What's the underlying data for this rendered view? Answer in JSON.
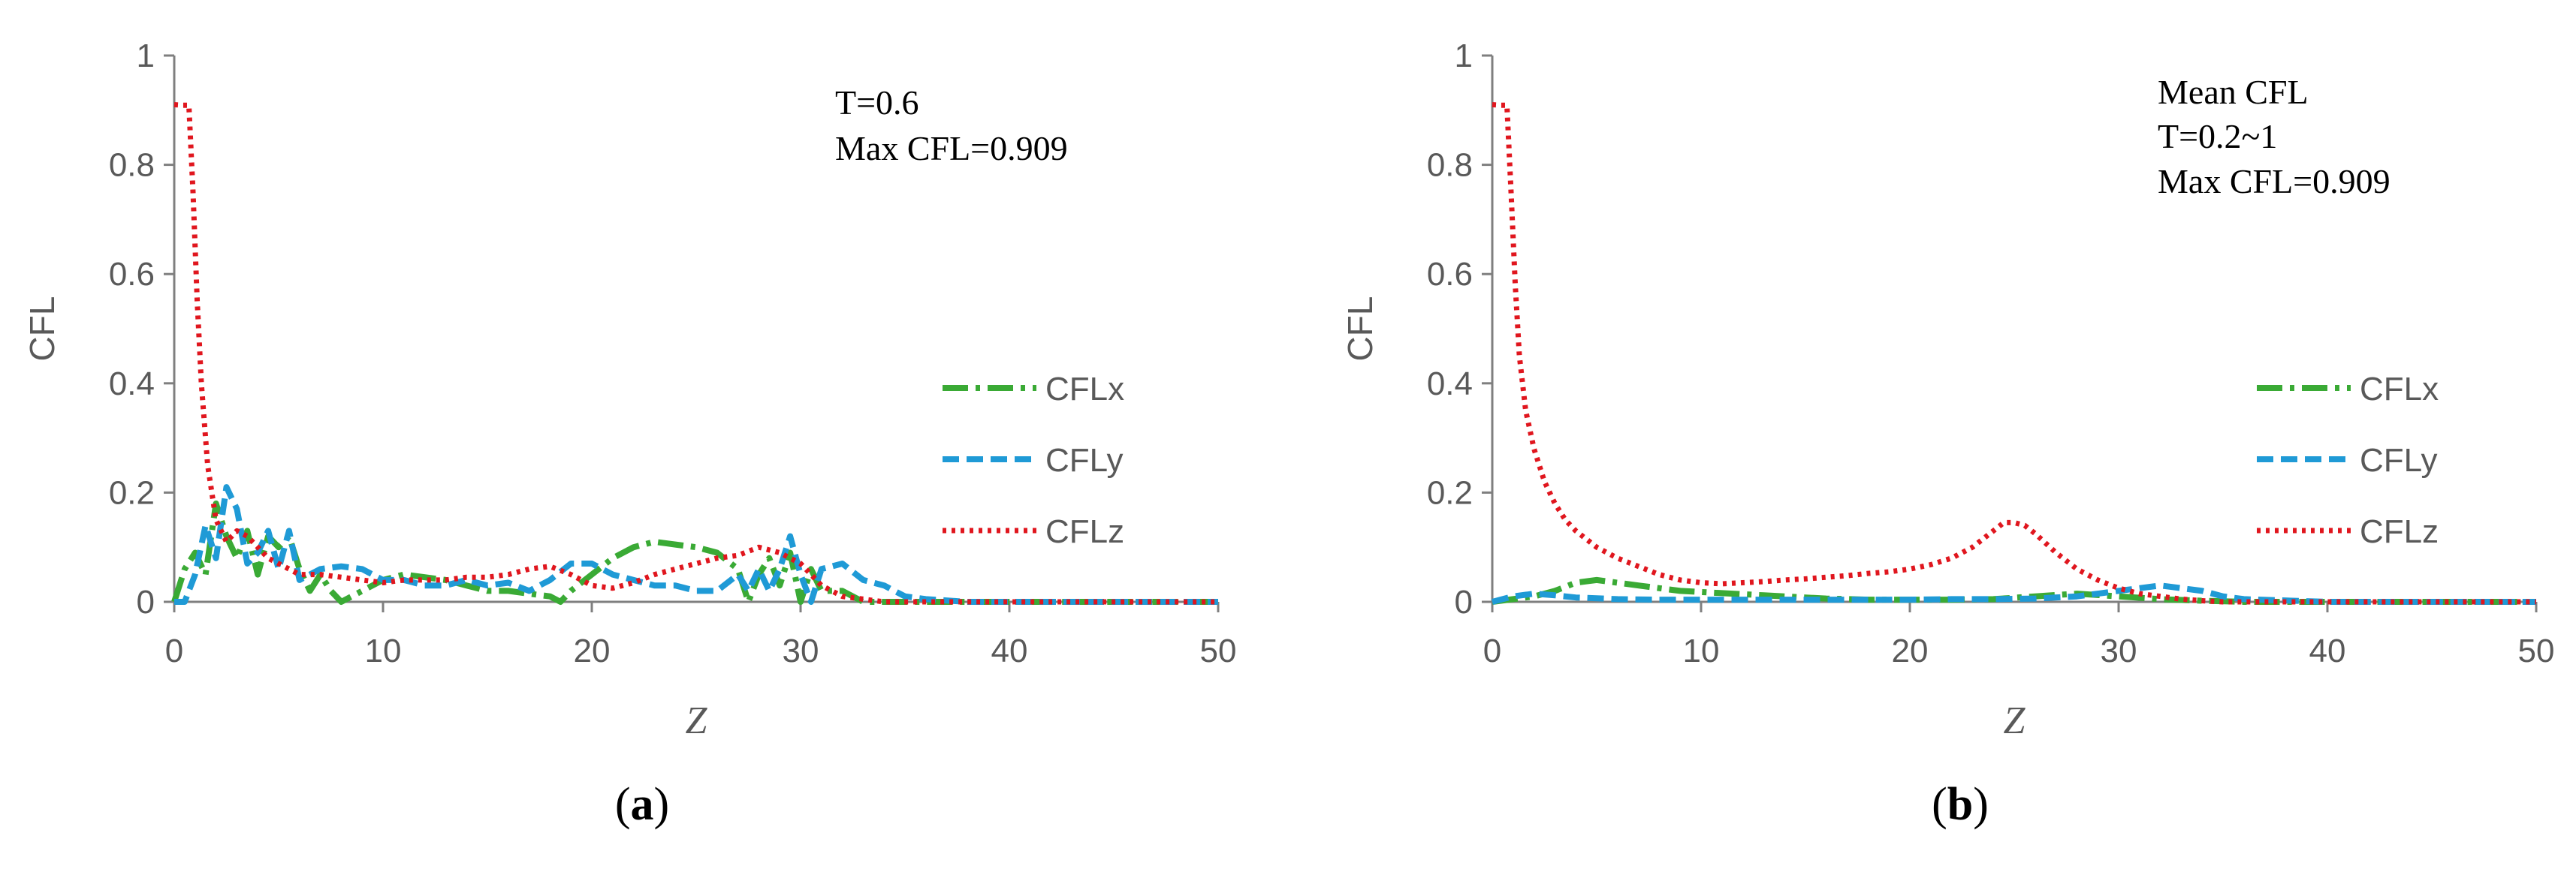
{
  "chart_data": [
    {
      "type": "line",
      "panel_label": {
        "open": "(",
        "letter": "a",
        "close": ")"
      },
      "xlabel": "Z",
      "ylabel": "CFL",
      "xlim": [
        0,
        50
      ],
      "ylim": [
        0,
        1
      ],
      "xticks": [
        "0",
        "10",
        "20",
        "30",
        "40",
        "50"
      ],
      "yticks": [
        "0",
        "0.2",
        "0.4",
        "0.6",
        "0.8",
        "1"
      ],
      "annotations": [
        "T=0.6",
        "Max CFL=0.909"
      ],
      "legend_position": "right",
      "series": [
        {
          "name": "CFLx",
          "color": "#3aaa35",
          "style": "dash-dot",
          "x": [
            0,
            0.5,
            1,
            1.5,
            2,
            2.5,
            3,
            3.5,
            4,
            4.5,
            5,
            5.5,
            6,
            6.5,
            7,
            7.5,
            8,
            9,
            10,
            11,
            12,
            13,
            14,
            15,
            16,
            17,
            18,
            18.5,
            19,
            20,
            21,
            22,
            23,
            24,
            25,
            26,
            27,
            27.5,
            28,
            28.5,
            29,
            29.5,
            30,
            30.5,
            31,
            32,
            33,
            34,
            35,
            40,
            45,
            50
          ],
          "y": [
            0,
            0.06,
            0.09,
            0.05,
            0.18,
            0.12,
            0.08,
            0.13,
            0.05,
            0.12,
            0.1,
            0.12,
            0.06,
            0.02,
            0.05,
            0.02,
            0.0,
            0.02,
            0.04,
            0.05,
            0.045,
            0.04,
            0.03,
            0.02,
            0.02,
            0.015,
            0.01,
            0.0,
            0.02,
            0.05,
            0.08,
            0.1,
            0.11,
            0.105,
            0.1,
            0.09,
            0.06,
            0.0,
            0.05,
            0.08,
            0.03,
            0.09,
            0.0,
            0.06,
            0.02,
            0.02,
            0.0,
            0.0,
            0.0,
            0.0,
            0.0,
            0.0
          ]
        },
        {
          "name": "CFLy",
          "color": "#1f9ad6",
          "style": "dash",
          "x": [
            0,
            0.5,
            1,
            1.5,
            2,
            2.5,
            3,
            3.5,
            4,
            4.5,
            5,
            5.5,
            6,
            6.5,
            7,
            8,
            9,
            10,
            11,
            12,
            13,
            14,
            15,
            16,
            17,
            18,
            19,
            20,
            21,
            22,
            23,
            24,
            25,
            26,
            27,
            27.5,
            28,
            28.5,
            29,
            29.5,
            30,
            30.5,
            31,
            32,
            33,
            34,
            35,
            36,
            38,
            40,
            45,
            50
          ],
          "y": [
            0,
            0.0,
            0.05,
            0.14,
            0.08,
            0.21,
            0.17,
            0.07,
            0.09,
            0.13,
            0.06,
            0.13,
            0.04,
            0.05,
            0.06,
            0.065,
            0.06,
            0.04,
            0.04,
            0.03,
            0.03,
            0.04,
            0.03,
            0.035,
            0.02,
            0.04,
            0.07,
            0.07,
            0.05,
            0.04,
            0.03,
            0.03,
            0.02,
            0.02,
            0.05,
            0.02,
            0.06,
            0.02,
            0.06,
            0.12,
            0.05,
            0.0,
            0.06,
            0.07,
            0.04,
            0.03,
            0.01,
            0.005,
            0.0,
            0.0,
            0.0,
            0.0
          ]
        },
        {
          "name": "CFLz",
          "color": "#e0161e",
          "style": "dot",
          "x": [
            0,
            0.4,
            0.7,
            0.9,
            1.1,
            1.3,
            1.6,
            2,
            2.5,
            3,
            3.5,
            4,
            4.5,
            5,
            6,
            7,
            8,
            9,
            10,
            11,
            12,
            13,
            14,
            15,
            16,
            17,
            18,
            19,
            20,
            21,
            22,
            23,
            24,
            25,
            26,
            27,
            28,
            29,
            30,
            31,
            32,
            33,
            34,
            35,
            40,
            45,
            50
          ],
          "y": [
            0.91,
            0.909,
            0.909,
            0.75,
            0.55,
            0.4,
            0.25,
            0.15,
            0.11,
            0.13,
            0.12,
            0.1,
            0.08,
            0.07,
            0.05,
            0.05,
            0.045,
            0.04,
            0.035,
            0.04,
            0.04,
            0.04,
            0.045,
            0.045,
            0.05,
            0.06,
            0.065,
            0.05,
            0.03,
            0.025,
            0.035,
            0.05,
            0.06,
            0.07,
            0.08,
            0.085,
            0.1,
            0.09,
            0.07,
            0.03,
            0.01,
            0.005,
            0.0,
            0.0,
            0.0,
            0.0,
            0.0
          ]
        }
      ]
    },
    {
      "type": "line",
      "panel_label": {
        "open": "(",
        "letter": "b",
        "close": ")"
      },
      "xlabel": "Z",
      "ylabel": "CFL",
      "xlim": [
        0,
        50
      ],
      "ylim": [
        0,
        1
      ],
      "xticks": [
        "0",
        "10",
        "20",
        "30",
        "40",
        "50"
      ],
      "yticks": [
        "0",
        "0.2",
        "0.4",
        "0.6",
        "0.8",
        "1"
      ],
      "annotations": [
        "Mean CFL",
        "T=0.2~1",
        "Max CFL=0.909"
      ],
      "legend_position": "right",
      "series": [
        {
          "name": "CFLx",
          "color": "#3aaa35",
          "style": "dash-dot",
          "x": [
            0,
            1,
            2,
            3,
            4,
            5,
            6,
            7,
            8,
            9,
            10,
            11,
            12,
            13,
            14,
            15,
            16,
            18,
            20,
            22,
            24,
            26,
            28,
            30,
            32,
            34,
            36,
            40,
            45,
            50
          ],
          "y": [
            0,
            0.005,
            0.01,
            0.02,
            0.035,
            0.04,
            0.035,
            0.03,
            0.025,
            0.02,
            0.018,
            0.016,
            0.014,
            0.012,
            0.01,
            0.008,
            0.006,
            0.004,
            0.004,
            0.004,
            0.005,
            0.01,
            0.015,
            0.01,
            0.005,
            0.002,
            0.0,
            0.0,
            0.0,
            0.0
          ]
        },
        {
          "name": "CFLy",
          "color": "#1f9ad6",
          "style": "dash",
          "x": [
            0,
            1,
            2,
            3,
            4,
            6,
            8,
            10,
            12,
            14,
            16,
            18,
            20,
            22,
            24,
            26,
            28,
            29,
            30,
            31,
            32,
            33,
            34,
            35,
            36,
            40,
            45,
            50
          ],
          "y": [
            0,
            0.01,
            0.015,
            0.012,
            0.008,
            0.005,
            0.004,
            0.004,
            0.004,
            0.004,
            0.004,
            0.004,
            0.004,
            0.005,
            0.005,
            0.006,
            0.01,
            0.015,
            0.02,
            0.025,
            0.03,
            0.025,
            0.02,
            0.01,
            0.005,
            0.0,
            0.0,
            0.0
          ]
        },
        {
          "name": "CFLz",
          "color": "#e0161e",
          "style": "dot",
          "x": [
            0,
            0.4,
            0.7,
            0.9,
            1.1,
            1.3,
            1.6,
            2,
            2.5,
            3,
            3.5,
            4,
            5,
            6,
            7,
            8,
            9,
            10,
            11,
            12,
            13,
            14,
            15,
            16,
            17,
            18,
            19,
            20,
            21,
            22,
            23,
            23.5,
            24,
            24.5,
            25,
            25.5,
            26,
            27,
            28,
            29,
            30,
            31,
            32,
            33,
            34,
            35,
            40,
            45,
            50
          ],
          "y": [
            0.91,
            0.909,
            0.909,
            0.75,
            0.58,
            0.45,
            0.35,
            0.28,
            0.22,
            0.18,
            0.15,
            0.13,
            0.1,
            0.08,
            0.065,
            0.05,
            0.04,
            0.035,
            0.033,
            0.035,
            0.037,
            0.04,
            0.042,
            0.045,
            0.048,
            0.052,
            0.055,
            0.06,
            0.068,
            0.08,
            0.1,
            0.115,
            0.13,
            0.145,
            0.145,
            0.14,
            0.125,
            0.09,
            0.06,
            0.04,
            0.025,
            0.015,
            0.01,
            0.005,
            0.002,
            0.0,
            0.0,
            0.0,
            0.0
          ]
        }
      ]
    }
  ]
}
